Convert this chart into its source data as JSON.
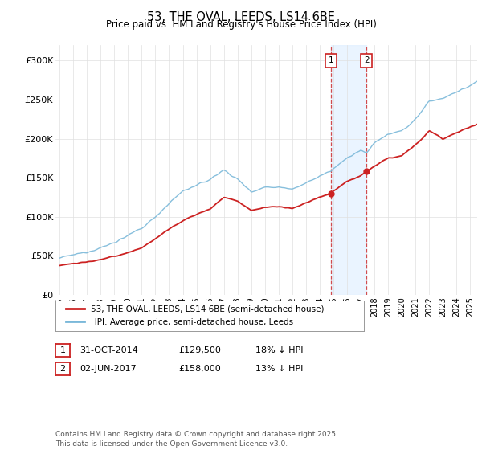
{
  "title": "53, THE OVAL, LEEDS, LS14 6BE",
  "subtitle": "Price paid vs. HM Land Registry's House Price Index (HPI)",
  "ylabel_ticks": [
    "£0",
    "£50K",
    "£100K",
    "£150K",
    "£200K",
    "£250K",
    "£300K"
  ],
  "ytick_values": [
    0,
    50000,
    100000,
    150000,
    200000,
    250000,
    300000
  ],
  "ylim": [
    0,
    320000
  ],
  "xlim_start": 1994.7,
  "xlim_end": 2025.5,
  "sale1_date": 2014.83,
  "sale1_price": 129500,
  "sale2_date": 2017.42,
  "sale2_price": 158000,
  "hpi_color": "#7ab8d9",
  "price_color": "#cc2222",
  "shade_color": "#ddeeff",
  "legend_label_red": "53, THE OVAL, LEEDS, LS14 6BE (semi-detached house)",
  "legend_label_blue": "HPI: Average price, semi-detached house, Leeds",
  "footer": "Contains HM Land Registry data © Crown copyright and database right 2025.\nThis data is licensed under the Open Government Licence v3.0.",
  "table_row1": [
    "1",
    "31-OCT-2014",
    "£129,500",
    "18% ↓ HPI"
  ],
  "table_row2": [
    "2",
    "02-JUN-2017",
    "£158,000",
    "13% ↓ HPI"
  ],
  "background_color": "#ffffff",
  "grid_color": "#e0e0e0",
  "box_color": "#cc2222"
}
